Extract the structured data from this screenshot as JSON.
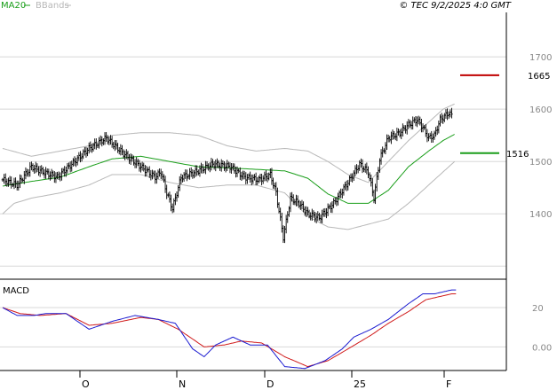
{
  "header": {
    "legend": [
      {
        "name": "MA20",
        "color": "#1a9e1a"
      },
      {
        "name": "BBands",
        "color": "#b8b8b8"
      }
    ],
    "copyright": "© TEC 9/2/2025 4:0 GMT"
  },
  "colors": {
    "bars": "#000000",
    "ma20": "#1a9e1a",
    "bbands": "#b8b8b8",
    "macd": "#1a1ad0",
    "signal": "#d01a1a",
    "resistance": "#c00000",
    "support": "#1a9e1a",
    "grid": "#d8d8d8"
  },
  "chart_data": [
    {
      "type": "ohlc",
      "title": "",
      "y_ticks": [
        1400,
        1500,
        1600,
        1700
      ],
      "ylim": [
        1275,
        1785
      ],
      "x_ticks": [
        "O",
        "N",
        "D",
        "25",
        "F"
      ],
      "grid": true,
      "levels": [
        {
          "name": "resistance",
          "value": 1665,
          "label": "1665"
        },
        {
          "name": "support",
          "value": 1516,
          "label": "1516"
        }
      ],
      "close_anchors": [
        [
          0,
          1465
        ],
        [
          10,
          1455
        ],
        [
          20,
          1490
        ],
        [
          28,
          1480
        ],
        [
          38,
          1470
        ],
        [
          48,
          1495
        ],
        [
          60,
          1525
        ],
        [
          72,
          1545
        ],
        [
          84,
          1515
        ],
        [
          96,
          1490
        ],
        [
          106,
          1470
        ],
        [
          110,
          1480
        ],
        [
          114,
          1440
        ],
        [
          118,
          1410
        ],
        [
          124,
          1470
        ],
        [
          134,
          1480
        ],
        [
          146,
          1495
        ],
        [
          158,
          1490
        ],
        [
          168,
          1470
        ],
        [
          178,
          1465
        ],
        [
          186,
          1475
        ],
        [
          190,
          1440
        ],
        [
          195,
          1355
        ],
        [
          200,
          1430
        ],
        [
          206,
          1420
        ],
        [
          212,
          1400
        ],
        [
          220,
          1392
        ],
        [
          230,
          1420
        ],
        [
          240,
          1460
        ],
        [
          248,
          1495
        ],
        [
          254,
          1480
        ],
        [
          258,
          1430
        ],
        [
          262,
          1505
        ],
        [
          268,
          1545
        ],
        [
          276,
          1555
        ],
        [
          282,
          1570
        ],
        [
          288,
          1580
        ],
        [
          292,
          1565
        ],
        [
          296,
          1545
        ],
        [
          300,
          1550
        ],
        [
          304,
          1580
        ],
        [
          310,
          1593
        ],
        [
          312,
          1588
        ]
      ],
      "series": [
        {
          "name": "MA20",
          "color": "#1a9e1a",
          "values": [
            [
              0,
              1453
            ],
            [
              20,
              1462
            ],
            [
              40,
              1470
            ],
            [
              60,
              1490
            ],
            [
              76,
              1505
            ],
            [
              96,
              1510
            ],
            [
              116,
              1500
            ],
            [
              136,
              1490
            ],
            [
              156,
              1488
            ],
            [
              176,
              1485
            ],
            [
              196,
              1482
            ],
            [
              212,
              1468
            ],
            [
              226,
              1438
            ],
            [
              240,
              1420
            ],
            [
              254,
              1420
            ],
            [
              268,
              1445
            ],
            [
              282,
              1490
            ],
            [
              296,
              1520
            ],
            [
              306,
              1540
            ],
            [
              314,
              1552
            ]
          ]
        },
        {
          "name": "BBands",
          "color": "#b8b8b8",
          "values": [
            [
              0,
              1400
            ],
            [
              8,
              1420
            ],
            [
              20,
              1430
            ],
            [
              40,
              1440
            ],
            [
              60,
              1455
            ],
            [
              76,
              1475
            ],
            [
              96,
              1475
            ],
            [
              116,
              1460
            ],
            [
              136,
              1450
            ],
            [
              156,
              1455
            ],
            [
              176,
              1455
            ],
            [
              196,
              1440
            ],
            [
              212,
              1395
            ],
            [
              226,
              1375
            ],
            [
              240,
              1370
            ],
            [
              254,
              1380
            ],
            [
              268,
              1390
            ],
            [
              282,
              1420
            ],
            [
              296,
              1455
            ],
            [
              306,
              1480
            ],
            [
              314,
              1500
            ]
          ]
        },
        {
          "name": "BBands",
          "color": "#b8b8b8",
          "values": [
            [
              0,
              1525
            ],
            [
              20,
              1510
            ],
            [
              40,
              1520
            ],
            [
              60,
              1530
            ],
            [
              76,
              1550
            ],
            [
              96,
              1555
            ],
            [
              116,
              1555
            ],
            [
              136,
              1550
            ],
            [
              156,
              1530
            ],
            [
              176,
              1520
            ],
            [
              196,
              1525
            ],
            [
              212,
              1520
            ],
            [
              226,
              1500
            ],
            [
              240,
              1475
            ],
            [
              254,
              1460
            ],
            [
              268,
              1500
            ],
            [
              282,
              1540
            ],
            [
              296,
              1575
            ],
            [
              306,
              1600
            ],
            [
              314,
              1610
            ]
          ]
        }
      ]
    },
    {
      "type": "line",
      "title": "MACD",
      "y_ticks": [
        0,
        20
      ],
      "y_tick_labels": [
        "0.00",
        "20"
      ],
      "ylim": [
        -12,
        34
      ],
      "series": [
        {
          "name": "MACD",
          "color": "#1a1ad0",
          "values": [
            [
              0,
              20
            ],
            [
              10,
              16
            ],
            [
              22,
              16
            ],
            [
              30,
              17
            ],
            [
              44,
              17
            ],
            [
              60,
              9
            ],
            [
              76,
              13
            ],
            [
              92,
              16
            ],
            [
              108,
              14
            ],
            [
              120,
              12
            ],
            [
              132,
              -1
            ],
            [
              140,
              -5
            ],
            [
              148,
              1
            ],
            [
              160,
              5
            ],
            [
              172,
              1
            ],
            [
              184,
              1
            ],
            [
              196,
              -10
            ],
            [
              210,
              -11
            ],
            [
              224,
              -7
            ],
            [
              236,
              -1
            ],
            [
              244,
              5
            ],
            [
              256,
              9
            ],
            [
              268,
              14
            ],
            [
              282,
              22
            ],
            [
              292,
              27
            ],
            [
              300,
              27
            ],
            [
              306,
              28
            ],
            [
              312,
              29
            ],
            [
              315,
              29
            ]
          ]
        },
        {
          "name": "Signal",
          "color": "#d01a1a",
          "values": [
            [
              0,
              20
            ],
            [
              12,
              17
            ],
            [
              26,
              16
            ],
            [
              44,
              17
            ],
            [
              60,
              11
            ],
            [
              76,
              12
            ],
            [
              96,
              15
            ],
            [
              108,
              14
            ],
            [
              122,
              9
            ],
            [
              140,
              0
            ],
            [
              154,
              1
            ],
            [
              166,
              3
            ],
            [
              180,
              2
            ],
            [
              196,
              -5
            ],
            [
              212,
              -10
            ],
            [
              226,
              -7
            ],
            [
              240,
              -1
            ],
            [
              256,
              6
            ],
            [
              268,
              12
            ],
            [
              282,
              18
            ],
            [
              294,
              24
            ],
            [
              300,
              25
            ],
            [
              306,
              26
            ],
            [
              312,
              27
            ],
            [
              315,
              27
            ]
          ]
        }
      ]
    }
  ]
}
